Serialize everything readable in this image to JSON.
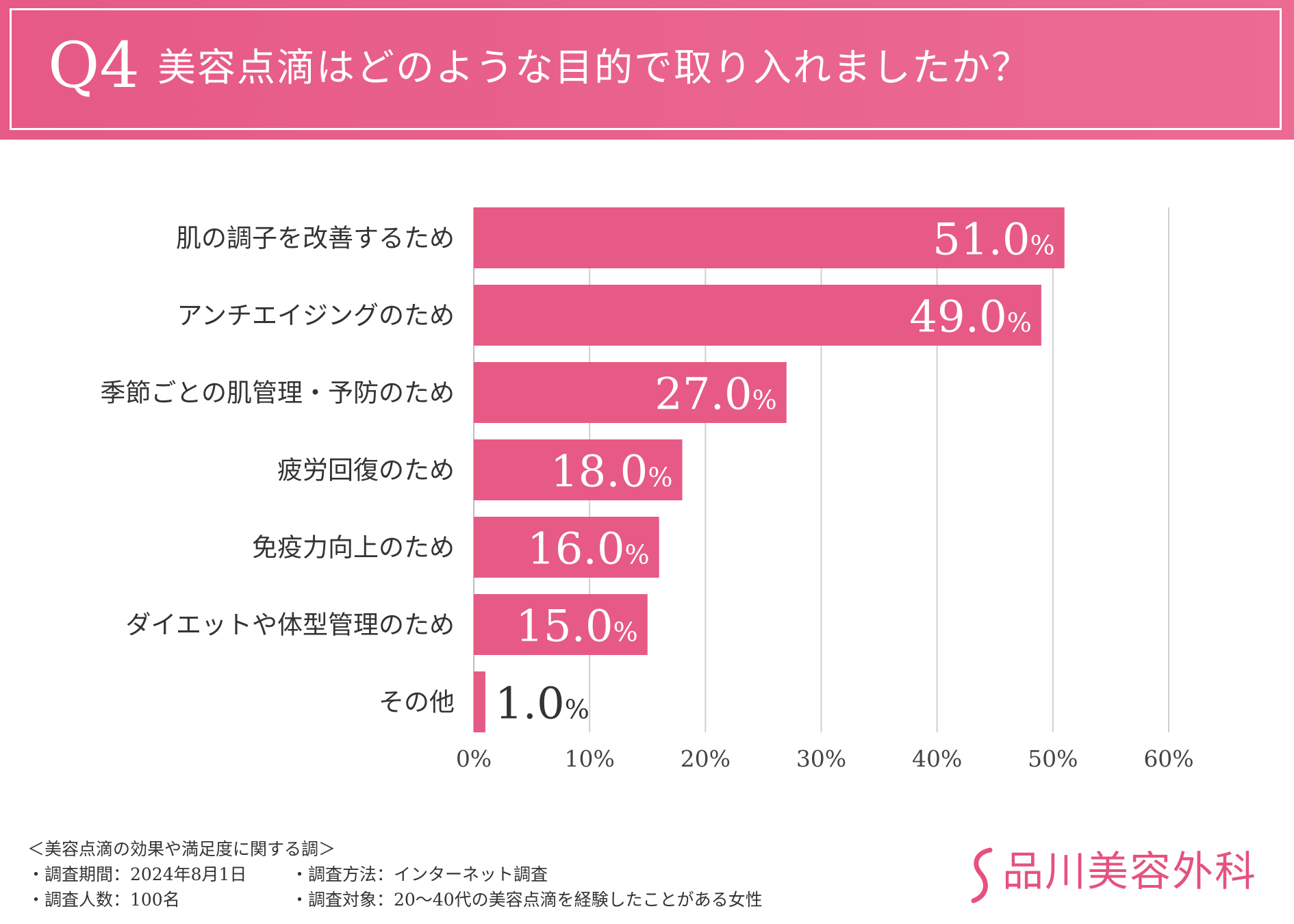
{
  "header": {
    "question_number": "Q4",
    "question_text": "美容点滴はどのような目的で取り入れましたか？"
  },
  "colors": {
    "bar": "#e65a85",
    "header": "#e9628c",
    "grid": "#d0d0d0",
    "logo": "#e6517e"
  },
  "chart_data": {
    "type": "bar",
    "orientation": "horizontal",
    "categories": [
      "肌の調子を改善するため",
      "アンチエイジングのため",
      "季節ごとの肌管理・予防のため",
      "疲労回復のため",
      "免疫力向上のため",
      "ダイエットや体型管理のため",
      "その他"
    ],
    "values": [
      51.0,
      49.0,
      27.0,
      18.0,
      16.0,
      15.0,
      1.0
    ],
    "value_labels": [
      "51.0",
      "49.0",
      "27.0",
      "18.0",
      "16.0",
      "15.0",
      "1.0"
    ],
    "value_suffix": "%",
    "xlim": [
      0,
      60
    ],
    "ticks": [
      0,
      10,
      20,
      30,
      40,
      50,
      60
    ],
    "tick_labels": [
      "0%",
      "10%",
      "20%",
      "30%",
      "40%",
      "50%",
      "60%"
    ],
    "grid": true,
    "title": "美容点滴はどのような目的で取り入れましたか？"
  },
  "footer": {
    "survey_title": "＜美容点滴の効果や満足度に関する調＞",
    "period": "・調査期間：2024年8月1日",
    "method": "・調査方法：インターネット調査",
    "count": "・調査人数：100名",
    "target": "・調査対象：20〜40代の美容点滴を経験したことがある女性"
  },
  "logo": {
    "name": "品川美容外科"
  }
}
